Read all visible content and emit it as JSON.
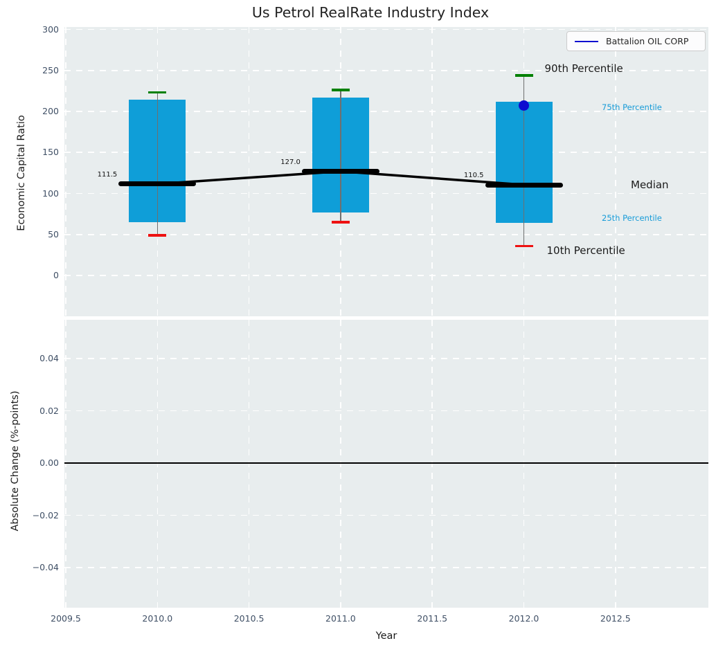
{
  "title": "Us Petrol RealRate Industry Index",
  "legend": {
    "label": "Battalion OIL CORP",
    "position": "upper right"
  },
  "colors": {
    "box_fill": "#0f9ed8",
    "whisker": "#6f6f6f",
    "cap_upper": "#008000",
    "cap_lower": "#ee1111",
    "median_line": "#000000",
    "company_marker": "#0d0dd0",
    "legend_line": "#0d0dd0",
    "axes_background": "#e8edee",
    "grid": "#ffffff",
    "tick_label": "#3f4f65",
    "text": "#1a1a1a",
    "accent_label": "#189cd8",
    "zero_line": "#000000"
  },
  "chart_data": [
    {
      "type": "box",
      "subplot": "top",
      "title": "Us Petrol RealRate Industry Index",
      "ylabel": "Economic Capital Ratio",
      "xlim": [
        2009.49,
        2013.0
      ],
      "ylim": [
        -50,
        303
      ],
      "grid": true,
      "legend_entries": [
        {
          "label": "Battalion OIL CORP",
          "color": "#0d0dd0",
          "style": "line"
        }
      ],
      "xticks": [
        {
          "v": 2009.5,
          "label": "2009.5"
        },
        {
          "v": 2010.0,
          "label": "2010.0"
        },
        {
          "v": 2010.5,
          "label": "2010.5"
        },
        {
          "v": 2011.0,
          "label": "2011.0"
        },
        {
          "v": 2011.5,
          "label": "2011.5"
        },
        {
          "v": 2012.0,
          "label": "2012.0"
        },
        {
          "v": 2012.5,
          "label": "2012.5"
        }
      ],
      "yticks": [
        {
          "v": 300,
          "label": "300"
        },
        {
          "v": 250,
          "label": "250"
        },
        {
          "v": 200,
          "label": "200"
        },
        {
          "v": 150,
          "label": "150"
        },
        {
          "v": 100,
          "label": "100"
        },
        {
          "v": 50,
          "label": "50"
        },
        {
          "v": 0,
          "label": "0"
        }
      ],
      "boxes": [
        {
          "x": 2010,
          "p10": 49,
          "p25": 65,
          "median": 111.5,
          "p75": 214,
          "p90": 223,
          "median_label": "111.5"
        },
        {
          "x": 2011,
          "p10": 65,
          "p25": 77,
          "median": 127.0,
          "p75": 217,
          "p90": 226,
          "median_label": "127.0"
        },
        {
          "x": 2012,
          "p10": 36,
          "p25": 64,
          "median": 110.5,
          "p75": 212,
          "p90": 244,
          "median_label": "110.5"
        }
      ],
      "median_line_points": [
        {
          "x": 2010,
          "y": 111.5
        },
        {
          "x": 2011,
          "y": 127.0
        },
        {
          "x": 2012,
          "y": 110.5
        }
      ],
      "series": [
        {
          "name": "Battalion OIL CORP",
          "type": "scatter",
          "points": [
            {
              "x": 2012,
              "y": 207
            }
          ]
        }
      ],
      "annotations": [
        {
          "id": "p90",
          "text": "90th Percentile"
        },
        {
          "id": "p75",
          "text": "75th Percentile"
        },
        {
          "id": "median",
          "text": "Median"
        },
        {
          "id": "p25",
          "text": "25th Percentile"
        },
        {
          "id": "p10",
          "text": "10th Percentile"
        }
      ]
    },
    {
      "type": "line",
      "subplot": "bottom",
      "xlabel": "Year",
      "ylabel": "Absolute Change (%-points)",
      "xlim": [
        2009.49,
        2013.0
      ],
      "ylim": [
        -0.055,
        0.055
      ],
      "grid": true,
      "xticks": [
        {
          "v": 2009.5,
          "label": "2009.5"
        },
        {
          "v": 2010.0,
          "label": "2010.0"
        },
        {
          "v": 2010.5,
          "label": "2010.5"
        },
        {
          "v": 2011.0,
          "label": "2011.0"
        },
        {
          "v": 2011.5,
          "label": "2011.5"
        },
        {
          "v": 2012.0,
          "label": "2012.0"
        },
        {
          "v": 2012.5,
          "label": "2012.5"
        }
      ],
      "yticks": [
        {
          "v": 0.04,
          "label": "0.04"
        },
        {
          "v": 0.02,
          "label": "0.02"
        },
        {
          "v": 0.0,
          "label": "0.00"
        },
        {
          "v": -0.02,
          "label": "−0.02"
        },
        {
          "v": -0.04,
          "label": "−0.04"
        }
      ],
      "zero_line": 0.0,
      "series": []
    }
  ]
}
